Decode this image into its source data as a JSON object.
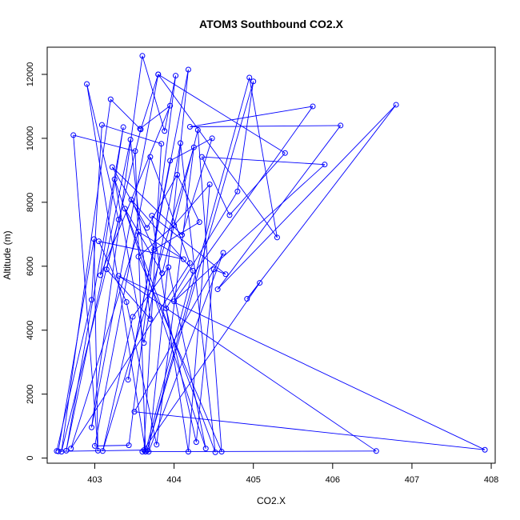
{
  "chart_data": {
    "type": "scatter",
    "title": "ATOM3 Southbound CO2.X",
    "xlabel": "CO2.X",
    "ylabel": "Altitude (m)",
    "xlim": [
      402.4,
      408.05
    ],
    "ylim": [
      -160,
      12850
    ],
    "xticks": [
      403,
      404,
      405,
      406,
      407,
      408
    ],
    "yticks": [
      0,
      2000,
      4000,
      6000,
      8000,
      10000,
      12000
    ],
    "grid": false,
    "line_color": "#0000ff",
    "marker": "open-circle",
    "series": [
      {
        "x": [
          402.52,
          402.96,
          403.09,
          403.84,
          403.62,
          402.54,
          402.99,
          403.04,
          402.73,
          403.51,
          403.64,
          402.9,
          403.3,
          402.58,
          403.2,
          403.57,
          403.95,
          403.07,
          403.36,
          402.64,
          403.45,
          403.7,
          403.15,
          403.58,
          403.8,
          402.96,
          403.6,
          403.88,
          404.02,
          403.43,
          403.0,
          403.7,
          404.2,
          402.7,
          403.55,
          404.12,
          403.05,
          403.4,
          403.78,
          404.25,
          403.1,
          403.48,
          403.93,
          404.4,
          403.25,
          403.62,
          404.08,
          404.52,
          403.38,
          403.85,
          404.3,
          404.6,
          403.55,
          404.0,
          404.45,
          404.18,
          403.72,
          404.65,
          404.5,
          404.28,
          403.9,
          404.8,
          405.0,
          403.66,
          404.95,
          405.3,
          403.8,
          405.4,
          404.7,
          404.35,
          405.9,
          404.0,
          405.75,
          404.2,
          406.1,
          404.55,
          406.8,
          404.92,
          405.08,
          403.6,
          406.55,
          403.3,
          407.92,
          403.5,
          404.62,
          403.68,
          404.18,
          403.42,
          403.95,
          404.48,
          404.1,
          403.22,
          403.66,
          404.04,
          404.32,
          403.75,
          403.46,
          404.24,
          403.64
        ],
        "y": [
          220,
          4950,
          10420,
          9830,
          250,
          210,
          6850,
          230,
          10100,
          9600,
          200,
          11700,
          7460,
          200,
          11220,
          10300,
          11020,
          5720,
          10350,
          230,
          9960,
          4350,
          5900,
          10280,
          12000,
          960,
          12580,
          10230,
          11960,
          400,
          380,
          9420,
          6100,
          300,
          7080,
          6220,
          6780,
          4880,
          420,
          9720,
          220,
          4420,
          5970,
          300,
          8720,
          3600,
          9850,
          180,
          7800,
          5780,
          10260,
          200,
          6300,
          7280,
          8560,
          200,
          7580,
          5750,
          5900,
          500,
          4680,
          8340,
          11780,
          240,
          11900,
          6900,
          12000,
          9540,
          7600,
          9420,
          9180,
          4900,
          11000,
          10360,
          10400,
          5280,
          11050,
          4980,
          5480,
          200,
          220,
          5700,
          260,
          1450,
          6420,
          200,
          12150,
          2450,
          9300,
          10000,
          6980,
          9100,
          7200,
          8860,
          7380,
          6520,
          8080,
          5860,
          210
        ]
      }
    ]
  }
}
